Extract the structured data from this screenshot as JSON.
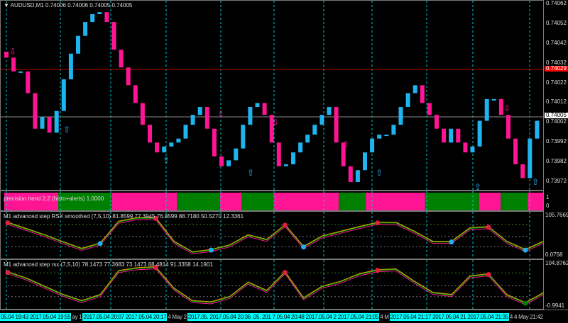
{
  "window": {
    "symbol_title": "AUDUSD,M1  0.74006 0.74006 0.74005 0.74005"
  },
  "price_axis": {
    "ticks": [
      "0.74062",
      "0.74052",
      "0.74042",
      "0.74032",
      "0.74022",
      "0.74012",
      "0.74002",
      "0.73992",
      "0.73982",
      "0.73972"
    ],
    "ask_tag": "0.74029",
    "bid_tag": "0.74005",
    "ask_color": "#ff0000",
    "bid_color": "#ffffff"
  },
  "chart_data": [
    {
      "type": "candlestick",
      "name": "AUDUSD,M1",
      "ylim": [
        0.73968,
        0.74064
      ],
      "up_color": "#1eb4f0",
      "down_color": "#ff1493",
      "closes": [
        0.74035,
        0.74028,
        0.74028,
        0.74017,
        0.73999,
        0.74005,
        0.73997,
        0.74008,
        0.74024,
        0.74037,
        0.74046,
        0.74053,
        0.74057,
        0.74058,
        0.74053,
        0.74039,
        0.7403,
        0.74021,
        0.74012,
        0.74001,
        0.73992,
        0.73987,
        0.7399,
        0.73992,
        0.73994,
        0.74001,
        0.74006,
        0.7401,
        0.73999,
        0.73985,
        0.7398,
        0.73983,
        0.73989,
        0.74001,
        0.7401,
        0.74012,
        0.74006,
        0.73992,
        0.7398,
        0.73981,
        0.73987,
        0.73992,
        0.73996,
        0.74001,
        0.74006,
        0.7401,
        0.73992,
        0.7398,
        0.73972,
        0.73978,
        0.73987,
        0.73994,
        0.73996,
        0.73996,
        0.74001,
        0.7401,
        0.74017,
        0.74021,
        0.74012,
        0.74006,
        0.73999,
        0.73992,
        0.73999,
        0.73992,
        0.73987,
        0.7399,
        0.74003,
        0.74014,
        0.74014,
        0.74006,
        0.73994,
        0.73981,
        0.73974,
        0.73994,
        0.74003
      ],
      "ask_line": 0.74029,
      "bid_line": 0.74005
    },
    {
      "type": "histogram",
      "title": "precision trend 2.2 (histo+alerts) 1.0000",
      "axis_ticks": [
        "1",
        "0"
      ],
      "segments": [
        [
          "down",
          0,
          10
        ],
        [
          "up",
          10,
          20
        ],
        [
          "down",
          20,
          32
        ],
        [
          "up",
          32,
          40
        ],
        [
          "down",
          40,
          44
        ],
        [
          "up",
          44,
          50
        ],
        [
          "down",
          50,
          62
        ],
        [
          "up",
          62,
          67
        ],
        [
          "down",
          67,
          78
        ],
        [
          "up",
          78,
          88
        ],
        [
          "down",
          88,
          92
        ],
        [
          "up",
          92,
          97
        ],
        [
          "down",
          97,
          100
        ],
        [
          "up",
          100,
          101
        ]
      ],
      "colors": {
        "up": "#008000",
        "down": "#ff1493"
      }
    },
    {
      "type": "line",
      "title": "M1 advanced step RSX smoothed (7,5,10) 81.8599 77.3945 76.8599 88.7180 50.5270 12.3361",
      "axis_top": "105.7669",
      "axis_bottom": "0.0758",
      "ylim": [
        0,
        105.77
      ],
      "values": [
        88,
        72,
        56,
        38,
        21,
        35,
        91,
        100,
        100,
        39,
        12,
        18,
        30,
        56,
        44,
        82,
        26,
        53,
        65,
        77,
        88,
        88,
        65,
        39,
        39,
        74,
        77,
        39,
        18,
        40
      ]
    },
    {
      "type": "line",
      "title": "M1 advanced step rsx (7,5,10) 78.1473 77.3683 73.1473 88.4814 91.3358 14.1901",
      "axis_top": "104.8762",
      "axis_bottom": "-0.9941",
      "ylim": [
        0,
        104.88
      ],
      "values": [
        85,
        70,
        50,
        30,
        15,
        30,
        88,
        95,
        97,
        45,
        15,
        12,
        25,
        60,
        40,
        85,
        22,
        50,
        62,
        80,
        90,
        92,
        62,
        35,
        30,
        75,
        80,
        30,
        10,
        35
      ]
    }
  ],
  "time_axis": {
    "labels": [
      {
        "text": "05.04 19:43",
        "hl": true
      },
      {
        "text": "2017.05.04 19:55",
        "hl": true
      },
      {
        "text": "ay 1",
        "hl": false
      },
      {
        "text": "2017.05.04 20:07",
        "hl": true
      },
      {
        "text": "2017.05.04 20:17",
        "hl": true
      },
      {
        "text": "4 May 2",
        "hl": false
      },
      {
        "text": "2017.05.",
        "hl": true
      },
      {
        "text": "2017.05.04 20:36",
        "hl": true
      },
      {
        "text": ".05.",
        "hl": true
      },
      {
        "text": "201",
        "hl": true
      },
      {
        "text": "7.05.04 20:48",
        "hl": true
      },
      {
        "text": "2017.05.04 2",
        "hl": true
      },
      {
        "text": "2017.05.04 21:05",
        "hl": true
      },
      {
        "text": "4 M",
        "hl": false
      },
      {
        "text": "2017.05.04 21:17",
        "hl": true
      },
      {
        "text": "2017.05.04 21",
        "hl": true
      },
      {
        "text": "2017.05.04 21:35",
        "hl": true
      },
      {
        "text": "4",
        "hl": false
      },
      {
        "text": "4 May 21:42",
        "hl": false
      }
    ]
  },
  "signals": {
    "up_arrow": "⇧",
    "down_arrow": "⇩"
  }
}
